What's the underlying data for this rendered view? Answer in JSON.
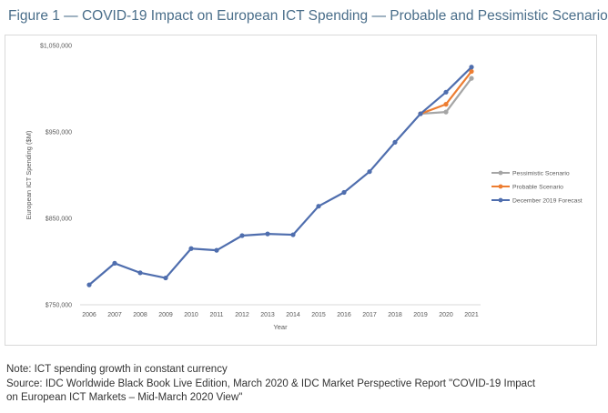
{
  "figure_title": "Figure 1 — COVID-19 Impact on European ICT Spending — Probable and Pessimistic Scenarios",
  "note": "Note: ICT spending growth in constant currency",
  "source_line1": "Source: IDC Worldwide Black Book Live Edition, March 2020 & IDC Market Perspective Report \"COVID-19 Impact",
  "source_line2": "on European ICT Markets – Mid-March 2020 View\"",
  "chart_data": {
    "type": "line",
    "xlabel": "Year",
    "ylabel": "European ICT Spending ($M)",
    "ylim": [
      750000,
      1050000
    ],
    "yticks": [
      "$750,000",
      "$850,000",
      "$950,000",
      "$1,050,000"
    ],
    "ytick_values": [
      750000,
      850000,
      950000,
      1050000
    ],
    "x": [
      "2006",
      "2007",
      "2008",
      "2009",
      "2010",
      "2011",
      "2012",
      "2013",
      "2014",
      "2015",
      "2016",
      "2017",
      "2018",
      "2019",
      "2020",
      "2021"
    ],
    "legend_position": "right",
    "grid": false,
    "series": [
      {
        "name": "Pessimistic Scenario",
        "color": "#a5a5a5",
        "x": [
          "2019",
          "2020",
          "2021"
        ],
        "values": [
          971000,
          973000,
          1012000
        ]
      },
      {
        "name": "Probable Scenario",
        "color": "#ed7d31",
        "x": [
          "2019",
          "2020",
          "2021"
        ],
        "values": [
          971000,
          982000,
          1020000
        ]
      },
      {
        "name": "December 2019 Forecast",
        "color": "#4f6eae",
        "x": [
          "2006",
          "2007",
          "2008",
          "2009",
          "2010",
          "2011",
          "2012",
          "2013",
          "2014",
          "2015",
          "2016",
          "2017",
          "2018",
          "2019",
          "2020",
          "2021"
        ],
        "values": [
          773000,
          798000,
          787000,
          781000,
          815000,
          813000,
          830000,
          832000,
          831000,
          864000,
          880000,
          904000,
          938000,
          971000,
          996000,
          1025000
        ]
      }
    ]
  }
}
